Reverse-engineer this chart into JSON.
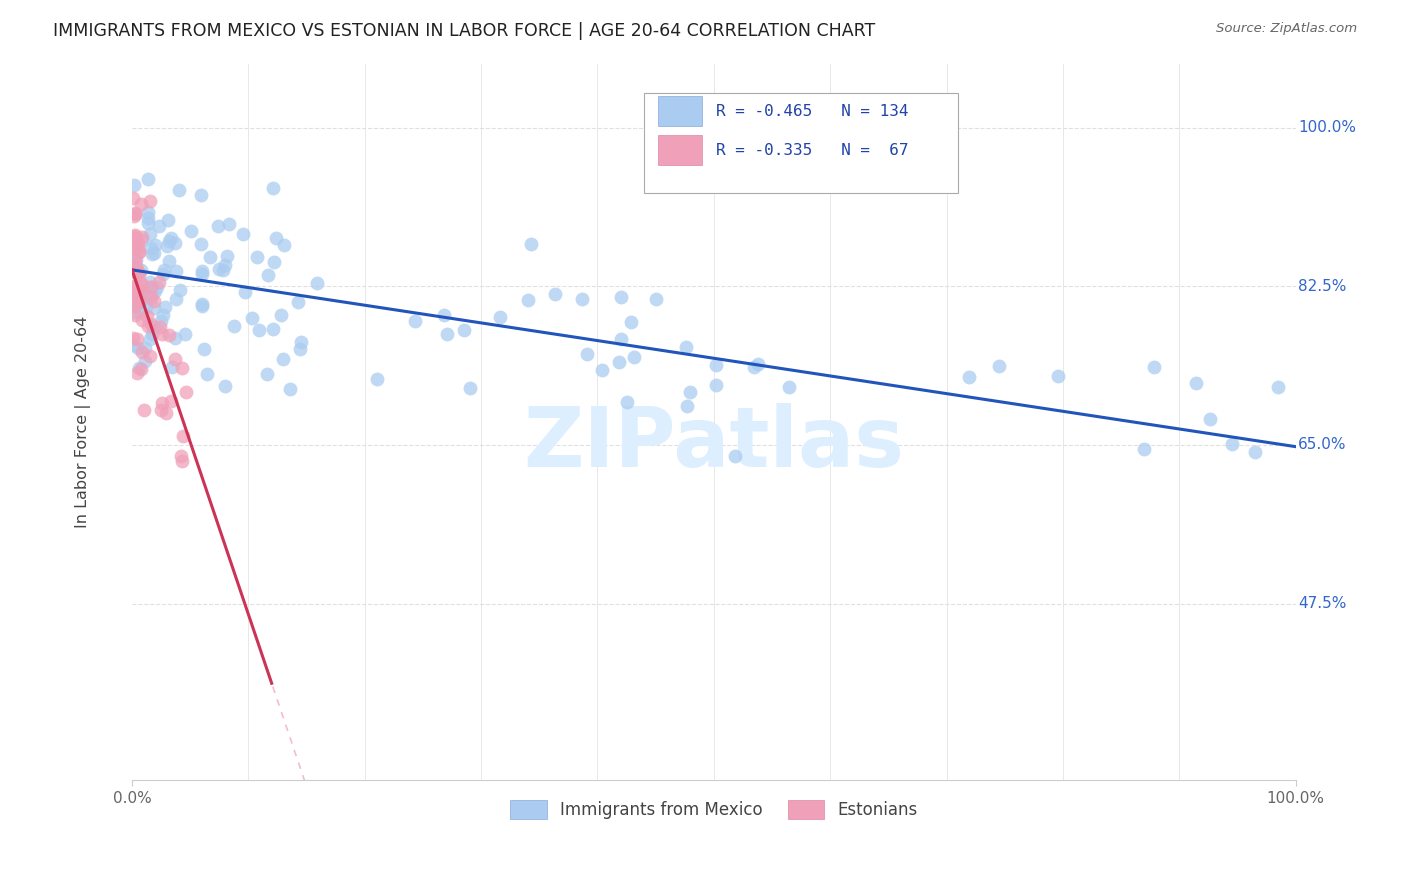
{
  "title": "IMMIGRANTS FROM MEXICO VS ESTONIAN IN LABOR FORCE | AGE 20-64 CORRELATION CHART",
  "source": "Source: ZipAtlas.com",
  "ylabel": "In Labor Force | Age 20-64",
  "xlim": [
    0.0,
    1.0
  ],
  "ylim": [
    0.28,
    1.07
  ],
  "yticks": [
    0.475,
    0.65,
    0.825,
    1.0
  ],
  "ytick_labels": [
    "47.5%",
    "65.0%",
    "82.5%",
    "100.0%"
  ],
  "legend_r_blue": "-0.465",
  "legend_n_blue": "134",
  "legend_r_pink": "-0.335",
  "legend_n_pink": " 67",
  "blue_color": "#aaccf0",
  "pink_color": "#f0a0b8",
  "trendline_blue_color": "#2255bb",
  "trendline_pink_color": "#cc3355",
  "trendline_dashed_color": "#f0a0b8",
  "watermark": "ZIPatlas",
  "blue_intercept": 0.843,
  "blue_slope": -0.195,
  "pink_intercept": 0.843,
  "pink_slope": -3.8
}
